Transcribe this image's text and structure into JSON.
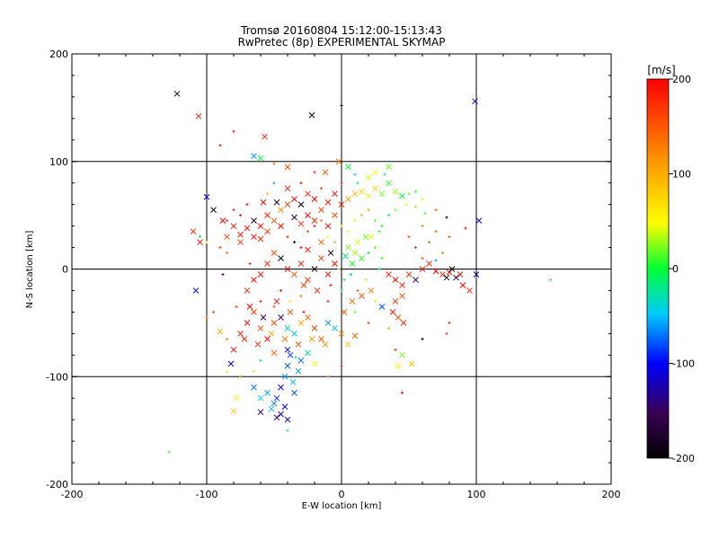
{
  "chart_data": {
    "type": "scatter",
    "title": "Tromsø 20160804 15:12:00-15:13:43",
    "subtitle": "RwPretec (8p) EXPERIMENTAL SKYMAP",
    "xlabel": "E-W location [km]",
    "ylabel": "N-S location [km]",
    "xlim": [
      -200,
      200
    ],
    "ylim": [
      -200,
      200
    ],
    "xticks": [
      "-200",
      "-100",
      "0",
      "100",
      "200"
    ],
    "yticks": [
      "-200",
      "-100",
      "0",
      "100",
      "200"
    ],
    "grid": true,
    "colorbar": {
      "label": "[m/s]",
      "range": [
        -200,
        200
      ],
      "ticks": [
        "-200",
        "-100",
        "0",
        "100",
        "200"
      ],
      "colormap": "rainbow",
      "colors": [
        "#000000",
        "#3a0055",
        "#0000ff",
        "#00ccff",
        "#00ff33",
        "#ffff00",
        "#ff9900",
        "#ff0000"
      ]
    },
    "markers": [
      "x",
      "+"
    ],
    "points": [
      [
        -122,
        163,
        -180,
        "x"
      ],
      [
        -106,
        142,
        180,
        "x"
      ],
      [
        -22,
        143,
        -190,
        "x"
      ],
      [
        0,
        152,
        -200,
        "+"
      ],
      [
        99,
        156,
        -110,
        "x"
      ],
      [
        -80,
        128,
        200,
        "+"
      ],
      [
        -57,
        123,
        180,
        "x"
      ],
      [
        -90,
        115,
        200,
        "+"
      ],
      [
        -60,
        103,
        0,
        "x"
      ],
      [
        -65,
        105,
        -60,
        "x"
      ],
      [
        -50,
        98,
        130,
        "+"
      ],
      [
        -40,
        95,
        160,
        "x"
      ],
      [
        -100,
        67,
        -110,
        "x"
      ],
      [
        -95,
        55,
        -190,
        "x"
      ],
      [
        -88,
        45,
        200,
        "x"
      ],
      [
        -80,
        40,
        180,
        "x"
      ],
      [
        -75,
        32,
        200,
        "x"
      ],
      [
        -70,
        38,
        190,
        "x"
      ],
      [
        -65,
        30,
        200,
        "x"
      ],
      [
        -60,
        28,
        180,
        "x"
      ],
      [
        -55,
        35,
        170,
        "x"
      ],
      [
        -50,
        45,
        150,
        "x"
      ],
      [
        -45,
        55,
        120,
        "x"
      ],
      [
        -40,
        60,
        160,
        "x"
      ],
      [
        -35,
        65,
        200,
        "x"
      ],
      [
        -30,
        60,
        -200,
        "x"
      ],
      [
        -25,
        70,
        180,
        "x"
      ],
      [
        -20,
        65,
        200,
        "x"
      ],
      [
        -15,
        55,
        160,
        "x"
      ],
      [
        -10,
        62,
        190,
        "x"
      ],
      [
        -5,
        70,
        200,
        "x"
      ],
      [
        0,
        60,
        180,
        "x"
      ],
      [
        5,
        65,
        110,
        "x"
      ],
      [
        10,
        70,
        90,
        "x"
      ],
      [
        15,
        72,
        70,
        "x"
      ],
      [
        20,
        68,
        60,
        "x"
      ],
      [
        25,
        75,
        80,
        "x"
      ],
      [
        30,
        70,
        20,
        "x"
      ],
      [
        35,
        80,
        10,
        "x"
      ],
      [
        40,
        72,
        30,
        "x"
      ],
      [
        45,
        68,
        0,
        "x"
      ],
      [
        50,
        70,
        20,
        "+"
      ],
      [
        55,
        72,
        10,
        "+"
      ],
      [
        60,
        65,
        40,
        "+"
      ],
      [
        70,
        55,
        150,
        "+"
      ],
      [
        78,
        48,
        -200,
        "+"
      ],
      [
        92,
        38,
        200,
        "+"
      ],
      [
        102,
        45,
        -120,
        "x"
      ],
      [
        20,
        85,
        40,
        "x"
      ],
      [
        25,
        90,
        50,
        "x"
      ],
      [
        35,
        95,
        20,
        "x"
      ],
      [
        5,
        95,
        0,
        "x"
      ],
      [
        -2,
        100,
        130,
        "x"
      ],
      [
        10,
        88,
        -50,
        "+"
      ],
      [
        -110,
        35,
        170,
        "x"
      ],
      [
        -105,
        25,
        200,
        "x"
      ],
      [
        -108,
        -20,
        -100,
        "x"
      ],
      [
        -90,
        -58,
        100,
        "x"
      ],
      [
        -85,
        -65,
        120,
        "+"
      ],
      [
        -80,
        -75,
        200,
        "x"
      ],
      [
        -75,
        -60,
        180,
        "x"
      ],
      [
        -70,
        -50,
        190,
        "x"
      ],
      [
        -65,
        -40,
        170,
        "x"
      ],
      [
        -60,
        -55,
        150,
        "x"
      ],
      [
        -55,
        -65,
        200,
        "x"
      ],
      [
        -50,
        -50,
        160,
        "x"
      ],
      [
        -45,
        -45,
        -150,
        "x"
      ],
      [
        -40,
        -55,
        -30,
        "x"
      ],
      [
        -35,
        -60,
        -50,
        "x"
      ],
      [
        -30,
        -50,
        100,
        "x"
      ],
      [
        -25,
        -45,
        140,
        "x"
      ],
      [
        -20,
        -55,
        170,
        "x"
      ],
      [
        -15,
        -65,
        150,
        "x"
      ],
      [
        -10,
        -50,
        -60,
        "x"
      ],
      [
        -5,
        -55,
        -40,
        "x"
      ],
      [
        0,
        -60,
        120,
        "x"
      ],
      [
        5,
        -70,
        80,
        "x"
      ],
      [
        10,
        -62,
        140,
        "x"
      ],
      [
        -70,
        -20,
        180,
        "x"
      ],
      [
        -65,
        -10,
        200,
        "x"
      ],
      [
        -60,
        -5,
        190,
        "x"
      ],
      [
        -55,
        5,
        180,
        "x"
      ],
      [
        -50,
        15,
        160,
        "x"
      ],
      [
        -45,
        10,
        -200,
        "x"
      ],
      [
        -40,
        0,
        200,
        "x"
      ],
      [
        -35,
        -5,
        150,
        "x"
      ],
      [
        -30,
        5,
        180,
        "x"
      ],
      [
        -25,
        -10,
        170,
        "x"
      ],
      [
        -20,
        0,
        -180,
        "x"
      ],
      [
        -15,
        10,
        160,
        "x"
      ],
      [
        -10,
        -5,
        190,
        "x"
      ],
      [
        -5,
        5,
        200,
        "x"
      ],
      [
        -38,
        -80,
        -90,
        "x"
      ],
      [
        -40,
        -90,
        -80,
        "x"
      ],
      [
        -42,
        -100,
        -60,
        "x"
      ],
      [
        -45,
        -110,
        -100,
        "x"
      ],
      [
        -48,
        -120,
        -90,
        "x"
      ],
      [
        -50,
        -125,
        -70,
        "x"
      ],
      [
        -52,
        -130,
        -50,
        "x"
      ],
      [
        -45,
        -135,
        -120,
        "x"
      ],
      [
        -40,
        -140,
        -130,
        "x"
      ],
      [
        -35,
        -115,
        -80,
        "x"
      ],
      [
        -32,
        -95,
        -60,
        "x"
      ],
      [
        -30,
        -85,
        -70,
        "x"
      ],
      [
        -55,
        -115,
        -60,
        "x"
      ],
      [
        -60,
        -120,
        -40,
        "x"
      ],
      [
        -65,
        -110,
        -70,
        "x"
      ],
      [
        -48,
        -138,
        -140,
        "x"
      ],
      [
        -42,
        -128,
        -110,
        "x"
      ],
      [
        -36,
        -105,
        -50,
        "x"
      ],
      [
        -34,
        -82,
        -30,
        "+"
      ],
      [
        -60,
        -133,
        -150,
        "x"
      ],
      [
        -80,
        -132,
        80,
        "x"
      ],
      [
        -78,
        -120,
        60,
        "x"
      ],
      [
        -75,
        -100,
        120,
        "+"
      ],
      [
        -82,
        -88,
        -120,
        "x"
      ],
      [
        -40,
        -75,
        -110,
        "x"
      ],
      [
        -50,
        -78,
        140,
        "x"
      ],
      [
        -25,
        -78,
        -20,
        "x"
      ],
      [
        -20,
        -88,
        50,
        "x"
      ],
      [
        5,
        20,
        20,
        "x"
      ],
      [
        10,
        15,
        30,
        "x"
      ],
      [
        15,
        10,
        10,
        "x"
      ],
      [
        8,
        5,
        0,
        "x"
      ],
      [
        12,
        25,
        40,
        "x"
      ],
      [
        18,
        30,
        20,
        "x"
      ],
      [
        3,
        12,
        -20,
        "x"
      ],
      [
        20,
        15,
        0,
        "+"
      ],
      [
        25,
        20,
        20,
        "+"
      ],
      [
        30,
        10,
        10,
        "+"
      ],
      [
        22,
        30,
        40,
        "x"
      ],
      [
        28,
        35,
        10,
        "+"
      ],
      [
        35,
        -5,
        180,
        "x"
      ],
      [
        40,
        -10,
        200,
        "x"
      ],
      [
        45,
        -15,
        180,
        "x"
      ],
      [
        50,
        -5,
        170,
        "x"
      ],
      [
        55,
        -10,
        -150,
        "x"
      ],
      [
        60,
        0,
        190,
        "x"
      ],
      [
        65,
        5,
        180,
        "x"
      ],
      [
        70,
        -2,
        200,
        "x"
      ],
      [
        75,
        -5,
        180,
        "x"
      ],
      [
        80,
        -3,
        200,
        "x"
      ],
      [
        85,
        -8,
        -180,
        "x"
      ],
      [
        88,
        -5,
        190,
        "x"
      ],
      [
        90,
        -15,
        200,
        "x"
      ],
      [
        82,
        0,
        -200,
        "x"
      ],
      [
        78,
        -8,
        -190,
        "x"
      ],
      [
        95,
        -20,
        180,
        "x"
      ],
      [
        100,
        -5,
        -120,
        "x"
      ],
      [
        70,
        8,
        -60,
        "+"
      ],
      [
        60,
        10,
        150,
        "+"
      ],
      [
        45,
        -25,
        160,
        "x"
      ],
      [
        40,
        -30,
        170,
        "x"
      ],
      [
        42,
        -45,
        150,
        "x"
      ],
      [
        46,
        -50,
        180,
        "x"
      ],
      [
        38,
        -40,
        190,
        "x"
      ],
      [
        30,
        -35,
        -80,
        "x"
      ],
      [
        35,
        -55,
        100,
        "+"
      ],
      [
        40,
        -75,
        180,
        "+"
      ],
      [
        45,
        -80,
        20,
        "x"
      ],
      [
        42,
        -90,
        60,
        "x"
      ],
      [
        52,
        -88,
        90,
        "x"
      ],
      [
        60,
        -65,
        -200,
        "+"
      ],
      [
        80,
        -50,
        180,
        "+"
      ],
      [
        78,
        -60,
        160,
        "+"
      ],
      [
        45,
        -115,
        200,
        "+"
      ],
      [
        155,
        -10,
        10,
        "+"
      ],
      [
        -128,
        -170,
        10,
        "+"
      ],
      [
        -105,
        30,
        0,
        "+"
      ],
      [
        -100,
        25,
        60,
        "+"
      ],
      [
        -85,
        15,
        130,
        "+"
      ],
      [
        -55,
        70,
        90,
        "+"
      ],
      [
        -50,
        80,
        -60,
        "+"
      ],
      [
        -30,
        80,
        200,
        "+"
      ],
      [
        -20,
        90,
        180,
        "+"
      ],
      [
        15,
        50,
        100,
        "+"
      ],
      [
        20,
        55,
        110,
        "+"
      ],
      [
        60,
        40,
        130,
        "+"
      ],
      [
        70,
        35,
        150,
        "+"
      ],
      [
        80,
        30,
        160,
        "+"
      ],
      [
        -70,
        60,
        200,
        "+"
      ],
      [
        -75,
        50,
        190,
        "+"
      ],
      [
        -80,
        55,
        180,
        "+"
      ],
      [
        -85,
        45,
        170,
        "+"
      ],
      [
        -90,
        20,
        160,
        "+"
      ],
      [
        -40,
        30,
        180,
        "+"
      ],
      [
        -35,
        25,
        -190,
        "+"
      ],
      [
        -30,
        20,
        200,
        "+"
      ],
      [
        -25,
        35,
        150,
        "+"
      ],
      [
        -20,
        40,
        180,
        "+"
      ],
      [
        -15,
        45,
        120,
        "+"
      ],
      [
        -10,
        30,
        60,
        "+"
      ],
      [
        0,
        40,
        80,
        "+"
      ],
      [
        5,
        35,
        40,
        "+"
      ],
      [
        10,
        45,
        60,
        "+"
      ],
      [
        25,
        45,
        20,
        "+"
      ],
      [
        30,
        40,
        0,
        "+"
      ],
      [
        35,
        50,
        -20,
        "+"
      ],
      [
        40,
        55,
        20,
        "+"
      ],
      [
        48,
        60,
        40,
        "+"
      ],
      [
        55,
        58,
        30,
        "+"
      ],
      [
        62,
        52,
        10,
        "+"
      ],
      [
        -60,
        -30,
        190,
        "+"
      ],
      [
        -50,
        -35,
        150,
        "+"
      ],
      [
        -30,
        -25,
        130,
        "+"
      ],
      [
        -10,
        -30,
        180,
        "+"
      ],
      [
        0,
        -20,
        -40,
        "+"
      ],
      [
        10,
        -40,
        20,
        "+"
      ],
      [
        20,
        -50,
        160,
        "+"
      ],
      [
        25,
        -30,
        40,
        "+"
      ],
      [
        -60,
        -85,
        -30,
        "+"
      ],
      [
        -85,
        -95,
        60,
        "+"
      ],
      [
        -10,
        -100,
        120,
        "+"
      ],
      [
        0,
        -90,
        200,
        "+"
      ],
      [
        -40,
        -150,
        -20,
        "+"
      ],
      [
        -65,
        -95,
        40,
        "+"
      ],
      [
        -15,
        75,
        160,
        "+"
      ],
      [
        0,
        80,
        190,
        "+"
      ],
      [
        12,
        80,
        -10,
        "+"
      ],
      [
        32,
        88,
        -30,
        "+"
      ],
      [
        -5,
        25,
        20,
        "+"
      ],
      [
        -2,
        0,
        30,
        "+"
      ],
      [
        2,
        -10,
        0,
        "+"
      ],
      [
        7,
        -5,
        -20,
        "+"
      ],
      [
        50,
        30,
        160,
        "+"
      ],
      [
        55,
        20,
        170,
        "+"
      ],
      [
        65,
        25,
        140,
        "+"
      ],
      [
        75,
        15,
        120,
        "+"
      ],
      [
        -95,
        -40,
        160,
        "+"
      ],
      [
        -100,
        -45,
        150,
        "+"
      ],
      [
        -68,
        5,
        180,
        "+"
      ],
      [
        -88,
        -5,
        -150,
        "+"
      ],
      [
        -78,
        -35,
        170,
        "+"
      ],
      [
        -45,
        -20,
        180,
        "+"
      ],
      [
        -38,
        -30,
        60,
        "+"
      ],
      [
        -28,
        -40,
        200,
        "+"
      ],
      [
        -8,
        -15,
        190,
        "+"
      ],
      [
        12,
        -20,
        150,
        "+"
      ],
      [
        18,
        -10,
        30,
        "+"
      ],
      [
        28,
        0,
        -10,
        "+"
      ],
      [
        -30,
        42,
        170,
        "x"
      ],
      [
        -25,
        50,
        200,
        "x"
      ],
      [
        -20,
        45,
        180,
        "x"
      ],
      [
        -10,
        40,
        190,
        "x"
      ],
      [
        -5,
        50,
        160,
        "x"
      ],
      [
        -35,
        48,
        -160,
        "x"
      ],
      [
        -45,
        40,
        200,
        "x"
      ],
      [
        -55,
        50,
        180,
        "x"
      ],
      [
        -60,
        40,
        190,
        "x"
      ],
      [
        -65,
        45,
        -180,
        "x"
      ],
      [
        -75,
        25,
        170,
        "x"
      ],
      [
        -85,
        30,
        160,
        "x"
      ],
      [
        -15,
        25,
        150,
        "x"
      ],
      [
        -25,
        18,
        190,
        "x"
      ],
      [
        -8,
        15,
        -170,
        "x"
      ],
      [
        -18,
        -20,
        180,
        "x"
      ],
      [
        -28,
        -15,
        160,
        "x"
      ],
      [
        -38,
        -40,
        150,
        "x"
      ],
      [
        -48,
        -30,
        190,
        "x"
      ],
      [
        -58,
        -45,
        -140,
        "x"
      ],
      [
        -68,
        -35,
        200,
        "x"
      ],
      [
        -72,
        -65,
        180,
        "x"
      ],
      [
        -62,
        -70,
        170,
        "x"
      ],
      [
        -52,
        -60,
        100,
        "x"
      ],
      [
        -42,
        -65,
        130,
        "x"
      ],
      [
        -32,
        -70,
        160,
        "x"
      ],
      [
        -22,
        -65,
        110,
        "x"
      ],
      [
        -12,
        -70,
        120,
        "x"
      ],
      [
        2,
        -40,
        150,
        "x"
      ],
      [
        8,
        -30,
        140,
        "x"
      ],
      [
        15,
        -25,
        160,
        "x"
      ],
      [
        22,
        -20,
        130,
        "x"
      ],
      [
        -12,
        90,
        150,
        "x"
      ],
      [
        -40,
        75,
        190,
        "x"
      ],
      [
        -48,
        62,
        -190,
        "x"
      ],
      [
        -58,
        62,
        200,
        "x"
      ]
    ]
  }
}
